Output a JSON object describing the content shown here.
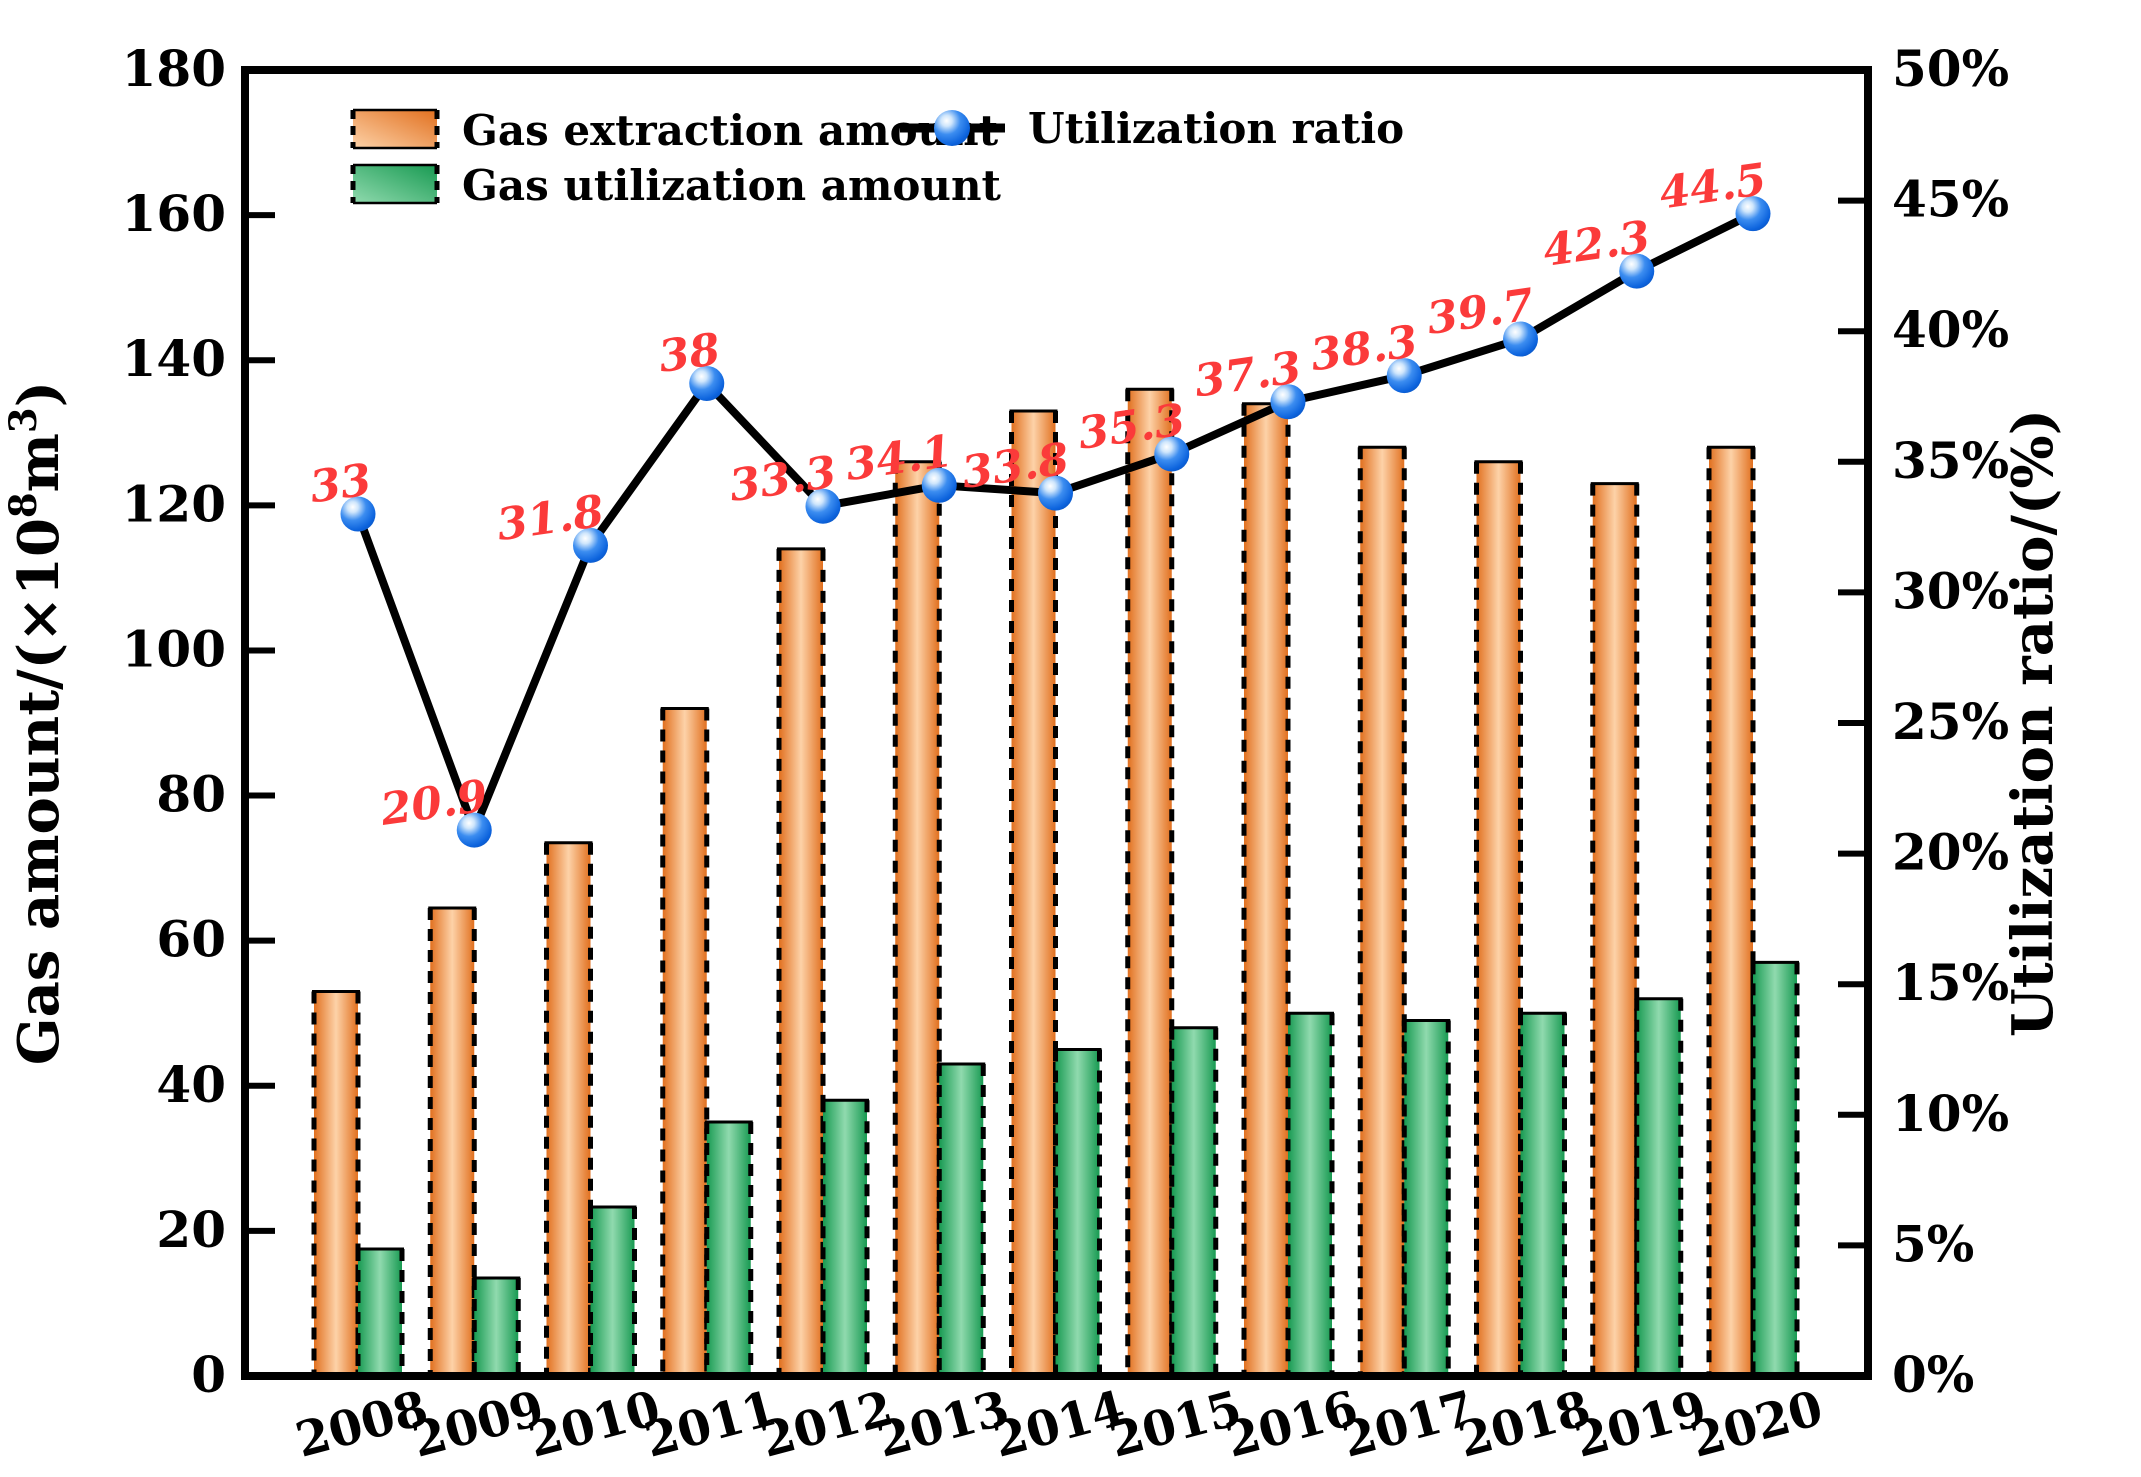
{
  "chart_data": {
    "type": "bar+line",
    "title": "",
    "categories": [
      "2008",
      "2009",
      "2010",
      "2011",
      "2012",
      "2013",
      "2014",
      "2015",
      "2016",
      "2017",
      "2018",
      "2019",
      "2020"
    ],
    "series": [
      {
        "name": "Gas extraction amount",
        "type": "bar",
        "axis": "left",
        "values": [
          53,
          64.5,
          73.5,
          92,
          114,
          126,
          133,
          136,
          134,
          128,
          126,
          123,
          128
        ],
        "color_edge": "#e1701f",
        "color_center": "#fdd2a8"
      },
      {
        "name": "Gas utilization amount",
        "type": "bar",
        "axis": "left",
        "values": [
          17.5,
          13.5,
          23.3,
          35,
          38,
          43,
          45,
          48,
          50,
          49,
          50,
          52,
          57
        ],
        "color_edge": "#189a52",
        "color_center": "#90daae"
      },
      {
        "name": "Utilization ratio",
        "type": "line",
        "axis": "right",
        "values": [
          33,
          20.9,
          31.8,
          38,
          33.3,
          34.1,
          33.8,
          35.3,
          37.3,
          38.3,
          39.7,
          42.3,
          44.5
        ],
        "point_labels": [
          "33",
          "20.9",
          "31.8",
          "38",
          "33.3",
          "34.1",
          "33.8",
          "35.3",
          "37.3",
          "38.3",
          "39.7",
          "42.3",
          "44.5"
        ],
        "line_color": "#000000",
        "marker_color": "#1272e8"
      }
    ],
    "left_axis": {
      "min": 0,
      "max": 180,
      "step": 20,
      "tick_labels": [
        "0",
        "20",
        "40",
        "60",
        "80",
        "100",
        "120",
        "140",
        "160",
        "180"
      ],
      "title_part1": "Gas amount/(×10",
      "title_sup1": "8",
      "title_part2": "m",
      "title_sup2": "3",
      "title_part3": ")"
    },
    "right_axis": {
      "min": 0,
      "max": 50,
      "step": 5,
      "tick_labels": [
        "0%",
        "5%",
        "10%",
        "15%",
        "20%",
        "25%",
        "30%",
        "35%",
        "40%",
        "45%",
        "50%"
      ],
      "title": "Utilization ratio/(%)"
    },
    "grid": false,
    "legend_position": "top-left-inside",
    "point_label_color": "#fb3a3a"
  },
  "legend": {
    "extraction_label": "Gas extraction amount",
    "utilization_label": "Gas utilization amount",
    "ratio_label": "Utilization ratio"
  }
}
